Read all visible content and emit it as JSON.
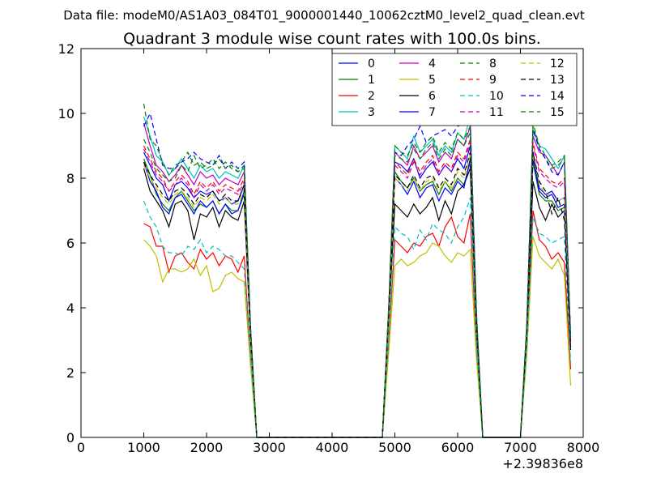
{
  "chart_data": {
    "type": "line",
    "suptitle": "Data file: modeM0/AS1A03_084T01_9000001440_10062cztM0_level2_quad_clean.evt",
    "title": "Quadrant 3 module wise count rates with 100.0s bins.",
    "xlabel": "",
    "ylabel": "",
    "x_offset_label": "+2.39836e8",
    "xlim": [
      0,
      8000
    ],
    "ylim": [
      0,
      12
    ],
    "xticks": [
      0,
      1000,
      2000,
      3000,
      4000,
      5000,
      6000,
      7000,
      8000
    ],
    "yticks": [
      0,
      2,
      4,
      6,
      8,
      10,
      12
    ],
    "grid": false,
    "legend_position": "top-right",
    "x": [
      1000,
      1100,
      1200,
      1300,
      1400,
      1500,
      1600,
      1700,
      1800,
      1900,
      2000,
      2100,
      2200,
      2300,
      2400,
      2500,
      2600,
      2700,
      2800,
      2900,
      3000,
      3100,
      3200,
      3300,
      3400,
      3500,
      3600,
      3700,
      3800,
      3900,
      4000,
      4100,
      4200,
      4300,
      4400,
      4500,
      4600,
      4700,
      4800,
      4900,
      5000,
      5100,
      5200,
      5300,
      5400,
      5500,
      5600,
      5700,
      5800,
      5900,
      6000,
      6100,
      6200,
      6300,
      6400,
      6500,
      6600,
      6700,
      6800,
      6900,
      7000,
      7100,
      7200,
      7300,
      7400,
      7500,
      7600,
      7700,
      7800
    ],
    "series": [
      {
        "name": "0",
        "color": "#0000ff",
        "dash": "solid",
        "values": [
          8.8,
          8.4,
          8.0,
          7.8,
          7.3,
          7.8,
          7.9,
          7.7,
          7.4,
          7.6,
          7.5,
          7.6,
          7.3,
          7.4,
          7.2,
          7.3,
          7.8,
          3.2,
          0,
          0,
          0,
          0,
          0,
          0,
          0,
          0,
          0,
          0,
          0,
          0,
          0,
          0,
          0,
          0,
          0,
          0,
          0,
          0,
          0,
          3.8,
          8.5,
          8.4,
          8.2,
          8.6,
          8.0,
          8.3,
          8.5,
          8.1,
          8.4,
          8.2,
          8.6,
          8.3,
          9.0,
          3.5,
          0,
          0,
          0,
          0,
          0,
          0,
          0,
          3.3,
          8.8,
          7.7,
          7.5,
          7.6,
          7.3,
          7.4,
          2.9
        ]
      },
      {
        "name": "1",
        "color": "#008000",
        "dash": "solid",
        "values": [
          8.6,
          8.1,
          7.5,
          7.2,
          7.0,
          7.4,
          7.6,
          7.3,
          7.0,
          7.2,
          7.1,
          7.3,
          6.9,
          7.2,
          7.0,
          7.0,
          7.5,
          3.1,
          0,
          0,
          0,
          0,
          0,
          0,
          0,
          0,
          0,
          0,
          0,
          0,
          0,
          0,
          0,
          0,
          0,
          0,
          0,
          0,
          0,
          3.7,
          8.2,
          7.9,
          7.7,
          8.0,
          7.6,
          7.8,
          7.9,
          7.5,
          7.9,
          7.6,
          8.0,
          7.8,
          8.5,
          3.4,
          0,
          0,
          0,
          0,
          0,
          0,
          0,
          3.2,
          8.5,
          7.5,
          7.3,
          7.3,
          7.0,
          7.1,
          2.8
        ]
      },
      {
        "name": "2",
        "color": "#ff0000",
        "dash": "solid",
        "values": [
          6.6,
          6.5,
          5.9,
          5.9,
          5.1,
          5.6,
          5.7,
          5.4,
          5.2,
          5.8,
          5.5,
          5.7,
          5.3,
          5.6,
          5.5,
          5.1,
          5.6,
          2.4,
          0,
          0,
          0,
          0,
          0,
          0,
          0,
          0,
          0,
          0,
          0,
          0,
          0,
          0,
          0,
          0,
          0,
          0,
          0,
          0,
          0,
          2.9,
          6.1,
          5.9,
          5.7,
          6.0,
          5.9,
          6.2,
          6.3,
          5.9,
          6.5,
          6.8,
          6.2,
          6.0,
          6.9,
          2.6,
          0,
          0,
          0,
          0,
          0,
          0,
          0,
          2.7,
          7.0,
          6.1,
          5.9,
          5.5,
          5.7,
          5.4,
          2.1
        ]
      },
      {
        "name": "3",
        "color": "#00bfbf",
        "dash": "solid",
        "values": [
          9.9,
          9.3,
          8.7,
          8.5,
          8.1,
          8.3,
          8.6,
          8.3,
          8.0,
          8.4,
          8.2,
          8.3,
          8.0,
          8.2,
          8.1,
          8.0,
          8.4,
          3.4,
          0,
          0,
          0,
          0,
          0,
          0,
          0,
          0,
          0,
          0,
          0,
          0,
          0,
          0,
          0,
          0,
          0,
          0,
          0,
          0,
          0,
          3.9,
          9.0,
          8.8,
          8.6,
          9.3,
          8.8,
          9.0,
          9.2,
          8.7,
          9.0,
          8.8,
          9.4,
          9.2,
          9.9,
          3.7,
          0,
          0,
          0,
          0,
          0,
          0,
          0,
          3.4,
          9.5,
          9.0,
          8.9,
          8.6,
          8.3,
          8.7,
          3.1
        ]
      },
      {
        "name": "4",
        "color": "#bf00bf",
        "dash": "solid",
        "values": [
          9.7,
          9.0,
          8.4,
          8.2,
          7.9,
          8.1,
          8.4,
          8.1,
          7.8,
          8.2,
          8.0,
          8.1,
          7.8,
          8.0,
          7.9,
          7.8,
          8.2,
          3.3,
          0,
          0,
          0,
          0,
          0,
          0,
          0,
          0,
          0,
          0,
          0,
          0,
          0,
          0,
          0,
          0,
          0,
          0,
          0,
          0,
          0,
          3.9,
          8.8,
          8.6,
          8.4,
          9.0,
          8.6,
          8.8,
          9.0,
          8.5,
          8.8,
          8.6,
          9.2,
          9.0,
          9.6,
          3.6,
          0,
          0,
          0,
          0,
          0,
          0,
          0,
          3.3,
          9.3,
          8.8,
          8.7,
          8.4,
          8.1,
          8.5,
          3.0
        ]
      },
      {
        "name": "5",
        "color": "#bfbf00",
        "dash": "solid",
        "values": [
          6.1,
          5.9,
          5.6,
          4.8,
          5.2,
          5.2,
          5.1,
          5.2,
          5.5,
          5.0,
          5.3,
          4.5,
          4.6,
          5.0,
          5.1,
          4.9,
          4.8,
          2.2,
          0,
          0,
          0,
          0,
          0,
          0,
          0,
          0,
          0,
          0,
          0,
          0,
          0,
          0,
          0,
          0,
          0,
          0,
          0,
          0,
          0,
          2.6,
          5.3,
          5.5,
          5.3,
          5.4,
          5.6,
          5.7,
          6.0,
          5.9,
          5.6,
          5.4,
          5.7,
          5.6,
          5.8,
          2.4,
          0,
          0,
          0,
          0,
          0,
          0,
          0,
          2.5,
          6.2,
          5.6,
          5.4,
          5.2,
          5.5,
          5.0,
          1.6
        ]
      },
      {
        "name": "6",
        "color": "#000000",
        "dash": "solid",
        "values": [
          8.3,
          7.6,
          7.3,
          7.0,
          6.5,
          7.2,
          7.3,
          7.0,
          6.1,
          6.9,
          6.8,
          7.1,
          6.5,
          7.0,
          6.8,
          6.7,
          7.3,
          3.0,
          0,
          0,
          0,
          0,
          0,
          0,
          0,
          0,
          0,
          0,
          0,
          0,
          0,
          0,
          0,
          0,
          0,
          0,
          0,
          0,
          0,
          3.6,
          7.2,
          7.0,
          6.8,
          7.2,
          6.9,
          7.1,
          7.4,
          6.7,
          7.3,
          6.9,
          7.6,
          7.8,
          8.3,
          3.2,
          0,
          0,
          0,
          0,
          0,
          0,
          0,
          3.1,
          7.9,
          7.1,
          6.7,
          7.2,
          6.8,
          7.0,
          2.7
        ]
      },
      {
        "name": "7",
        "color": "#0000ff",
        "dash": "solid",
        "values": [
          8.5,
          7.9,
          7.6,
          7.1,
          6.9,
          7.4,
          7.5,
          7.2,
          6.9,
          7.3,
          7.1,
          7.3,
          6.9,
          7.2,
          6.9,
          7.0,
          7.6,
          3.1,
          0,
          0,
          0,
          0,
          0,
          0,
          0,
          0,
          0,
          0,
          0,
          0,
          0,
          0,
          0,
          0,
          0,
          0,
          0,
          0,
          0,
          3.7,
          8.0,
          7.8,
          7.5,
          7.9,
          7.4,
          7.7,
          7.8,
          7.3,
          7.7,
          7.5,
          7.9,
          7.7,
          8.6,
          3.4,
          0,
          0,
          0,
          0,
          0,
          0,
          0,
          3.2,
          8.6,
          7.6,
          7.4,
          7.5,
          7.1,
          7.2,
          2.8
        ]
      },
      {
        "name": "8",
        "color": "#008000",
        "dash": "dashed",
        "values": [
          9.2,
          8.8,
          8.3,
          8.1,
          7.9,
          8.0,
          8.4,
          8.2,
          8.7,
          8.3,
          8.4,
          8.6,
          8.3,
          8.5,
          8.3,
          8.2,
          8.4,
          3.4,
          0,
          0,
          0,
          0,
          0,
          0,
          0,
          0,
          0,
          0,
          0,
          0,
          0,
          0,
          0,
          0,
          0,
          0,
          0,
          0,
          0,
          3.9,
          8.7,
          8.6,
          8.5,
          8.9,
          8.6,
          8.9,
          9.1,
          8.6,
          8.9,
          8.7,
          9.2,
          9.0,
          9.4,
          3.7,
          0,
          0,
          0,
          0,
          0,
          0,
          0,
          3.4,
          9.6,
          8.9,
          8.6,
          8.3,
          8.4,
          8.6,
          3.0
        ]
      },
      {
        "name": "9",
        "color": "#ff0000",
        "dash": "dashed",
        "values": [
          9.0,
          8.6,
          8.2,
          8.0,
          7.6,
          7.9,
          8.1,
          7.9,
          7.5,
          7.9,
          7.7,
          7.9,
          7.6,
          7.8,
          7.7,
          7.6,
          8.0,
          3.3,
          0,
          0,
          0,
          0,
          0,
          0,
          0,
          0,
          0,
          0,
          0,
          0,
          0,
          0,
          0,
          0,
          0,
          0,
          0,
          0,
          0,
          3.8,
          8.5,
          8.3,
          8.1,
          8.6,
          8.2,
          8.5,
          8.7,
          8.2,
          8.5,
          8.3,
          8.8,
          8.6,
          9.2,
          3.6,
          0,
          0,
          0,
          0,
          0,
          0,
          0,
          3.3,
          9.1,
          8.3,
          8.1,
          7.9,
          7.8,
          8.0,
          2.9
        ]
      },
      {
        "name": "10",
        "color": "#00bfbf",
        "dash": "dashed",
        "values": [
          7.3,
          6.8,
          6.5,
          5.9,
          5.7,
          5.7,
          5.6,
          5.9,
          5.8,
          6.1,
          5.7,
          5.9,
          5.8,
          5.6,
          5.6,
          5.4,
          5.2,
          2.5,
          0,
          0,
          0,
          0,
          0,
          0,
          0,
          0,
          0,
          0,
          0,
          0,
          0,
          0,
          0,
          0,
          0,
          0,
          0,
          0,
          0,
          3.0,
          6.5,
          6.3,
          6.2,
          5.8,
          6.4,
          6.1,
          6.6,
          6.4,
          6.3,
          6.0,
          6.5,
          6.8,
          7.4,
          2.8,
          0,
          0,
          0,
          0,
          0,
          0,
          0,
          2.8,
          6.8,
          6.3,
          6.2,
          6.0,
          6.1,
          6.2,
          2.3
        ]
      },
      {
        "name": "11",
        "color": "#bf00bf",
        "dash": "dashed",
        "values": [
          8.9,
          8.5,
          8.1,
          7.9,
          7.6,
          7.8,
          8.0,
          7.8,
          7.4,
          7.8,
          7.6,
          7.8,
          7.5,
          7.7,
          7.6,
          7.5,
          7.9,
          3.3,
          0,
          0,
          0,
          0,
          0,
          0,
          0,
          0,
          0,
          0,
          0,
          0,
          0,
          0,
          0,
          0,
          0,
          0,
          0,
          0,
          0,
          3.8,
          8.4,
          8.2,
          8.0,
          8.5,
          8.1,
          8.4,
          8.6,
          8.1,
          8.4,
          8.2,
          8.7,
          8.5,
          9.1,
          3.6,
          0,
          0,
          0,
          0,
          0,
          0,
          0,
          3.3,
          9.0,
          8.2,
          8.0,
          7.8,
          7.7,
          7.9,
          2.9
        ]
      },
      {
        "name": "12",
        "color": "#bfbf00",
        "dash": "dashed",
        "values": [
          8.4,
          8.0,
          7.7,
          7.4,
          7.2,
          7.5,
          7.6,
          7.4,
          7.1,
          7.4,
          7.3,
          7.5,
          7.2,
          7.4,
          7.2,
          7.2,
          7.7,
          3.1,
          0,
          0,
          0,
          0,
          0,
          0,
          0,
          0,
          0,
          0,
          0,
          0,
          0,
          0,
          0,
          0,
          0,
          0,
          0,
          0,
          0,
          3.6,
          8.0,
          7.8,
          7.6,
          8.0,
          7.6,
          7.9,
          8.0,
          7.6,
          7.9,
          7.7,
          8.2,
          8.0,
          8.7,
          3.4,
          0,
          0,
          0,
          0,
          0,
          0,
          0,
          3.2,
          8.7,
          7.8,
          7.5,
          7.5,
          7.3,
          7.4,
          2.8
        ]
      },
      {
        "name": "13",
        "color": "#000000",
        "dash": "dashed",
        "values": [
          8.5,
          8.1,
          7.8,
          7.5,
          7.3,
          7.6,
          7.7,
          7.5,
          7.2,
          7.5,
          7.4,
          7.6,
          7.3,
          7.5,
          7.3,
          7.3,
          7.8,
          3.2,
          0,
          0,
          0,
          0,
          0,
          0,
          0,
          0,
          0,
          0,
          0,
          0,
          0,
          0,
          0,
          0,
          0,
          0,
          0,
          0,
          0,
          3.7,
          8.1,
          7.9,
          7.7,
          8.1,
          7.7,
          8.0,
          8.1,
          7.7,
          8.0,
          7.8,
          8.3,
          8.1,
          8.8,
          3.5,
          0,
          0,
          0,
          0,
          0,
          0,
          0,
          3.2,
          8.8,
          7.9,
          7.6,
          6.9,
          7.4,
          6.7,
          2.8
        ]
      },
      {
        "name": "14",
        "color": "#0000ff",
        "dash": "dashed",
        "values": [
          9.6,
          10.0,
          9.2,
          8.4,
          8.3,
          8.3,
          8.5,
          8.6,
          8.8,
          8.6,
          8.5,
          8.4,
          8.7,
          8.3,
          8.5,
          8.3,
          8.5,
          3.4,
          0,
          0,
          0,
          0,
          0,
          0,
          0,
          0,
          0,
          0,
          0,
          0,
          0,
          0,
          0,
          0,
          0,
          0,
          0,
          0,
          0,
          4.0,
          8.8,
          8.7,
          9.0,
          9.2,
          9.6,
          9.1,
          9.3,
          9.4,
          9.5,
          9.3,
          9.6,
          9.7,
          9.8,
          3.8,
          0,
          0,
          0,
          0,
          0,
          0,
          0,
          3.5,
          9.5,
          8.9,
          8.6,
          8.2,
          8.1,
          8.5,
          3.1
        ]
      },
      {
        "name": "15",
        "color": "#008000",
        "dash": "dashed",
        "values": [
          10.3,
          9.2,
          9.0,
          8.5,
          8.1,
          8.4,
          8.5,
          8.8,
          8.4,
          8.5,
          8.3,
          8.4,
          8.6,
          8.3,
          8.4,
          8.2,
          8.3,
          3.4,
          0,
          0,
          0,
          0,
          0,
          0,
          0,
          0,
          0,
          0,
          0,
          0,
          0,
          0,
          0,
          0,
          0,
          0,
          0,
          0,
          0,
          4.0,
          9.0,
          8.8,
          8.7,
          9.1,
          8.8,
          9.1,
          9.3,
          8.8,
          9.1,
          8.9,
          9.4,
          9.2,
          9.6,
          3.8,
          0,
          0,
          0,
          0,
          0,
          0,
          0,
          3.5,
          9.7,
          9.0,
          8.7,
          8.4,
          8.5,
          8.7,
          3.1
        ]
      }
    ]
  }
}
